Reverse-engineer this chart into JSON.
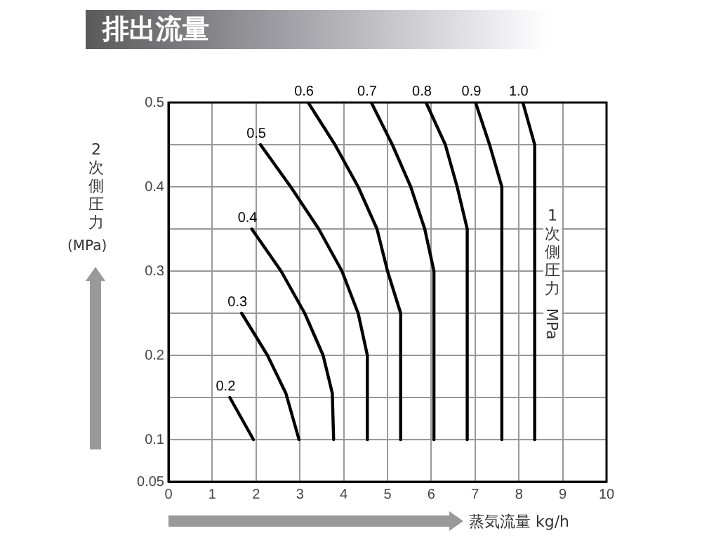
{
  "chart_data": {
    "type": "line",
    "title": "排出流量",
    "xlabel": "蒸気流量 kg/h",
    "ylabel": "2次側圧力 (MPa)",
    "annotations": [
      "1次側圧力 MPa"
    ],
    "xlim": [
      0,
      10
    ],
    "xticks": [
      0,
      1,
      2,
      3,
      4,
      5,
      6,
      7,
      8,
      9,
      10
    ],
    "ylim": [
      0.05,
      0.5
    ],
    "yticks": [
      0.05,
      0.1,
      {
        "value": 0.15,
        "label": null
      },
      0.2,
      {
        "value": 0.25,
        "label": null
      },
      0.3,
      {
        "value": 0.35,
        "label": null
      },
      0.4,
      {
        "value": 0.45,
        "label": null
      },
      0.5
    ],
    "grid": true,
    "legend": false,
    "marker": "none",
    "line_style": "solid",
    "series": [
      {
        "name": "0.2",
        "color": "#000000",
        "x": [
          1.4,
          1.67,
          1.94
        ],
        "values": [
          0.15,
          0.125,
          0.1
        ]
      },
      {
        "name": "0.3",
        "color": "#000000",
        "x": [
          1.67,
          2.26,
          2.68,
          2.98
        ],
        "values": [
          0.25,
          0.2,
          0.155,
          0.1
        ]
      },
      {
        "name": "0.4",
        "color": "#000000",
        "x": [
          1.9,
          2.57,
          3.11,
          3.53,
          3.74,
          3.77
        ],
        "values": [
          0.35,
          0.3,
          0.25,
          0.2,
          0.155,
          0.1
        ]
      },
      {
        "name": "0.5",
        "color": "#000000",
        "x": [
          2.1,
          2.79,
          3.43,
          3.96,
          4.33,
          4.54,
          4.54
        ],
        "values": [
          0.45,
          0.4,
          0.35,
          0.3,
          0.25,
          0.2,
          0.1
        ]
      },
      {
        "name": "0.6",
        "color": "#000000",
        "x": [
          3.19,
          3.8,
          4.33,
          4.76,
          5.0,
          5.3,
          5.3
        ],
        "values": [
          0.5,
          0.45,
          0.4,
          0.35,
          0.3,
          0.25,
          0.1
        ]
      },
      {
        "name": "0.7",
        "color": "#000000",
        "x": [
          4.63,
          5.11,
          5.53,
          5.85,
          6.06,
          6.06
        ],
        "values": [
          0.5,
          0.45,
          0.4,
          0.35,
          0.3,
          0.1
        ]
      },
      {
        "name": "0.8",
        "color": "#000000",
        "x": [
          5.88,
          6.32,
          6.59,
          6.82,
          6.82
        ],
        "values": [
          0.5,
          0.45,
          0.4,
          0.35,
          0.1
        ]
      },
      {
        "name": "0.9",
        "color": "#000000",
        "x": [
          7.01,
          7.33,
          7.61,
          7.61
        ],
        "values": [
          0.5,
          0.45,
          0.4,
          0.1
        ]
      },
      {
        "name": "1.0",
        "color": "#000000",
        "x": [
          8.09,
          8.36,
          8.36
        ],
        "values": [
          0.5,
          0.45,
          0.1
        ]
      }
    ]
  }
}
